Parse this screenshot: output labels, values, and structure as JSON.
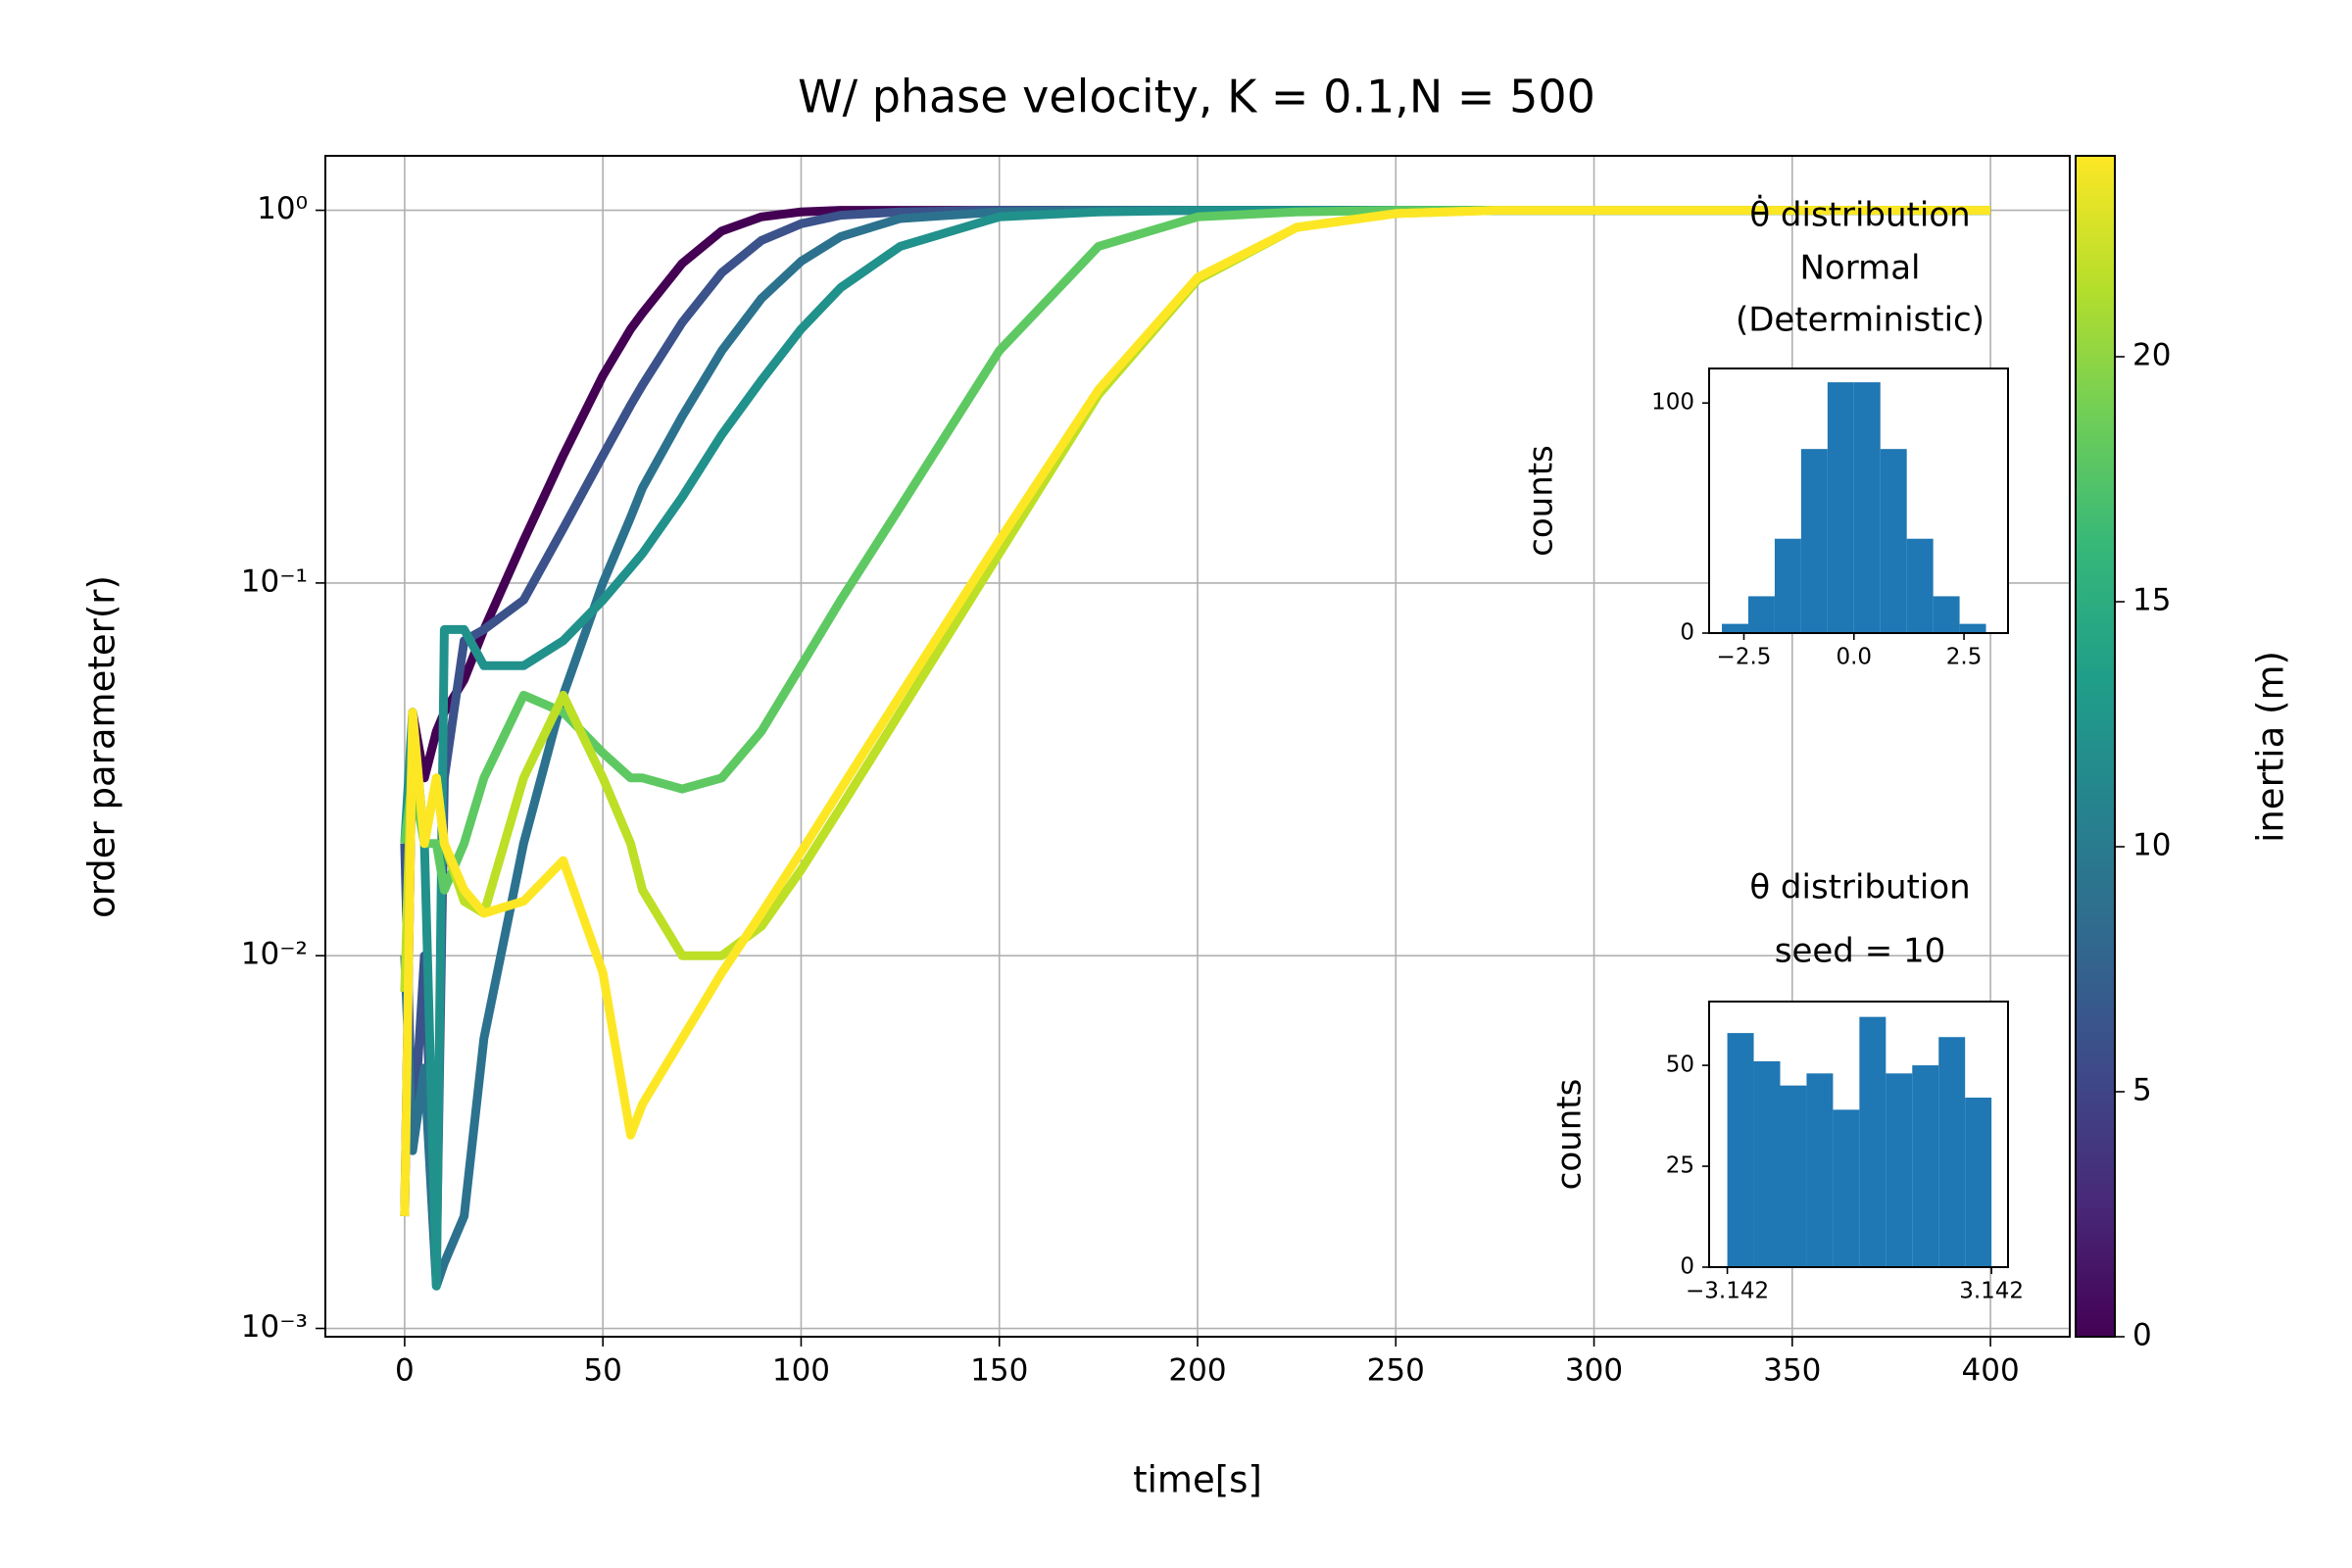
{
  "chart_data": [
    {
      "type": "line",
      "title": "W/ phase velocity, K = 0.1,N = 500",
      "xlabel": "time[s]",
      "ylabel": "order parameter(r)",
      "log_y": true,
      "grid": true,
      "xlim": [
        -20,
        420
      ],
      "xticks": [
        0,
        50,
        100,
        150,
        200,
        250,
        300,
        350,
        400
      ],
      "ylim": [
        0.00095,
        1.4
      ],
      "yticks": [
        {
          "value": 0.001,
          "label": "10⁻³"
        },
        {
          "value": 0.01,
          "label": "10⁻²"
        },
        {
          "value": 0.1,
          "label": "10⁻¹"
        },
        {
          "value": 1,
          "label": "10⁰"
        }
      ],
      "x": [
        0,
        2,
        5,
        8,
        10,
        15,
        20,
        30,
        40,
        50,
        57,
        60,
        70,
        80,
        90,
        100,
        110,
        125,
        150,
        175,
        200,
        225,
        250,
        275,
        300,
        350,
        400
      ],
      "series": [
        {
          "color": "#440154",
          "values": [
            0.002,
            0.045,
            0.03,
            0.04,
            0.045,
            0.055,
            0.075,
            0.13,
            0.22,
            0.36,
            0.48,
            0.53,
            0.72,
            0.88,
            0.96,
            0.99,
            1,
            1,
            1,
            1,
            1,
            1,
            1,
            1,
            1,
            1,
            1
          ]
        },
        {
          "color": "#3b528b",
          "values": [
            0.02,
            0.003,
            0.01,
            0.0015,
            0.03,
            0.07,
            0.075,
            0.09,
            0.14,
            0.22,
            0.3,
            0.34,
            0.5,
            0.68,
            0.83,
            0.92,
            0.97,
            0.99,
            1,
            1,
            1,
            1,
            1,
            1,
            1,
            1,
            1
          ]
        },
        {
          "color": "#2c728e",
          "values": [
            0.01,
            0.003,
            0.005,
            0.0013,
            0.0015,
            0.002,
            0.006,
            0.02,
            0.05,
            0.1,
            0.15,
            0.18,
            0.28,
            0.42,
            0.58,
            0.73,
            0.85,
            0.95,
            0.99,
            1,
            1,
            1,
            1,
            1,
            1,
            1,
            1
          ]
        },
        {
          "color": "#21918c",
          "values": [
            0.02,
            0.045,
            0.02,
            0.0013,
            0.075,
            0.075,
            0.06,
            0.06,
            0.07,
            0.09,
            0.11,
            0.12,
            0.17,
            0.25,
            0.35,
            0.48,
            0.62,
            0.8,
            0.96,
            0.99,
            1,
            1,
            1,
            1,
            1,
            1,
            1
          ]
        },
        {
          "color": "#5ec962",
          "values": [
            0.02,
            0.03,
            0.02,
            0.02,
            0.015,
            0.02,
            0.03,
            0.05,
            0.045,
            0.035,
            0.03,
            0.03,
            0.028,
            0.03,
            0.04,
            0.06,
            0.09,
            0.16,
            0.42,
            0.8,
            0.96,
            0.99,
            1,
            1,
            1,
            1,
            1
          ]
        },
        {
          "color": "#bddf26",
          "values": [
            0.008,
            0.04,
            0.02,
            0.03,
            0.02,
            0.014,
            0.013,
            0.03,
            0.05,
            0.03,
            0.02,
            0.015,
            0.01,
            0.01,
            0.012,
            0.017,
            0.025,
            0.045,
            0.12,
            0.32,
            0.65,
            0.9,
            0.98,
            1,
            1,
            1,
            1
          ]
        },
        {
          "color": "#fde725",
          "values": [
            0.002,
            0.045,
            0.02,
            0.03,
            0.02,
            0.015,
            0.013,
            0.014,
            0.018,
            0.009,
            0.0033,
            0.004,
            0.006,
            0.009,
            0.013,
            0.019,
            0.028,
            0.05,
            0.13,
            0.33,
            0.66,
            0.9,
            0.98,
            1,
            1,
            1,
            1
          ]
        }
      ],
      "colorbar": {
        "label": "inertia (m)",
        "lim": [
          0,
          24.1
        ],
        "ticks": [
          0,
          5,
          10,
          15,
          20
        ],
        "colors": [
          "#440154",
          "#482878",
          "#3e4989",
          "#31688e",
          "#26828e",
          "#1f9e89",
          "#35b779",
          "#6ece58",
          "#b5de2b",
          "#fde725"
        ]
      }
    },
    {
      "type": "histogram",
      "title": [
        "θ̇ distribution",
        "Normal",
        "(Deterministic)"
      ],
      "ylabel": "counts",
      "color": "#1f77b4",
      "bins": [
        -3.0,
        -2.4,
        -1.8,
        -1.2,
        -0.6,
        0.0,
        0.6,
        1.2,
        1.8,
        2.4,
        3.0
      ],
      "counts": [
        4,
        16,
        41,
        80,
        109,
        109,
        80,
        41,
        16,
        4
      ],
      "xlim": [
        -3.29,
        3.5
      ],
      "xticks": [
        {
          "value": -2.5,
          "label": "−2.5"
        },
        {
          "value": 0,
          "label": "0.0"
        },
        {
          "value": 2.5,
          "label": "2.5"
        }
      ],
      "ylim": [
        0,
        115
      ],
      "yticks": [
        0,
        100
      ]
    },
    {
      "type": "histogram",
      "title": [
        "θ distribution",
        "seed = 10"
      ],
      "ylabel": "counts",
      "color": "#1f77b4",
      "bins": [
        -3.142,
        -2.5136,
        -1.8852,
        -1.2568,
        -0.6284,
        0.0,
        0.6284,
        1.2568,
        1.8852,
        2.5136,
        3.142
      ],
      "counts": [
        58,
        51,
        45,
        48,
        39,
        62,
        48,
        50,
        57,
        42
      ],
      "xlim": [
        -3.575,
        3.535
      ],
      "xticks": [
        {
          "value": -3.142,
          "label": "−3.142"
        },
        {
          "value": 3.142,
          "label": "3.142"
        }
      ],
      "ylim": [
        0,
        65.8
      ],
      "yticks": [
        0,
        25,
        50
      ]
    }
  ]
}
